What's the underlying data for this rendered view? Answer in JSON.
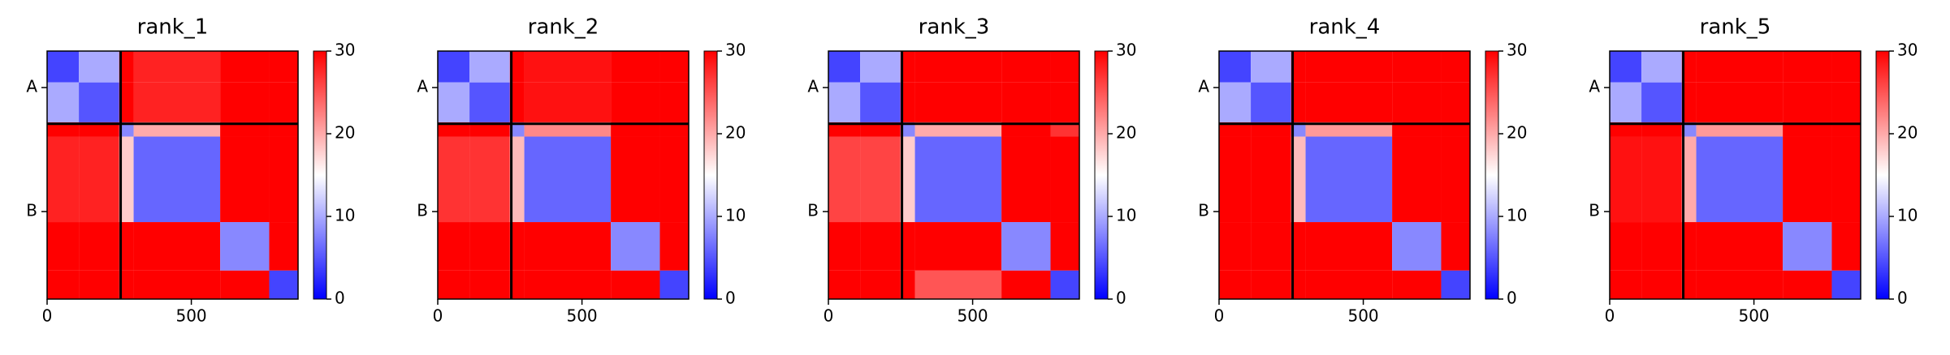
{
  "chart_data": [
    {
      "type": "heatmap",
      "title": "rank_1",
      "bins": [
        0,
        110,
        250,
        300,
        600,
        770,
        870
      ],
      "values": [
        [
          4,
          10,
          30,
          28,
          30,
          30
        ],
        [
          10,
          5,
          30,
          28,
          30,
          30
        ],
        [
          30,
          30,
          8,
          20,
          30,
          30
        ],
        [
          28,
          28,
          18,
          6,
          30,
          30
        ],
        [
          30,
          30,
          30,
          30,
          8,
          30
        ],
        [
          30,
          30,
          30,
          30,
          30,
          4
        ]
      ],
      "xlim": [
        0,
        870
      ],
      "ylim": [
        870,
        0
      ],
      "xticks": [
        0,
        500
      ],
      "yticks": [
        {
          "value": 128,
          "label": "A"
        },
        {
          "value": 563,
          "label": "B"
        }
      ],
      "chain_breaks": [
        255
      ],
      "zlim": [
        0,
        30
      ],
      "zticks": [
        0,
        10,
        20,
        30
      ]
    },
    {
      "type": "heatmap",
      "title": "rank_2",
      "bins": [
        0,
        110,
        250,
        300,
        600,
        770,
        870
      ],
      "values": [
        [
          4,
          10,
          30,
          29,
          30,
          30
        ],
        [
          10,
          5,
          30,
          29,
          30,
          30
        ],
        [
          30,
          30,
          8,
          22,
          30,
          30
        ],
        [
          27,
          27,
          19,
          6,
          30,
          30
        ],
        [
          30,
          30,
          30,
          30,
          8,
          30
        ],
        [
          30,
          30,
          30,
          30,
          30,
          4
        ]
      ],
      "xlim": [
        0,
        870
      ],
      "ylim": [
        870,
        0
      ],
      "xticks": [
        0,
        500
      ],
      "yticks": [
        {
          "value": 128,
          "label": "A"
        },
        {
          "value": 563,
          "label": "B"
        }
      ],
      "chain_breaks": [
        255
      ],
      "zlim": [
        0,
        30
      ],
      "zticks": [
        0,
        10,
        20,
        30
      ]
    },
    {
      "type": "heatmap",
      "title": "rank_3",
      "bins": [
        0,
        110,
        250,
        300,
        600,
        770,
        870
      ],
      "values": [
        [
          4,
          10,
          30,
          30,
          30,
          30
        ],
        [
          10,
          5,
          30,
          30,
          30,
          30
        ],
        [
          30,
          30,
          8,
          20,
          30,
          27
        ],
        [
          26,
          26,
          18,
          6,
          30,
          30
        ],
        [
          30,
          30,
          30,
          30,
          8,
          30
        ],
        [
          30,
          30,
          30,
          25,
          30,
          4
        ]
      ],
      "xlim": [
        0,
        870
      ],
      "ylim": [
        870,
        0
      ],
      "xticks": [
        0,
        500
      ],
      "yticks": [
        {
          "value": 128,
          "label": "A"
        },
        {
          "value": 563,
          "label": "B"
        }
      ],
      "chain_breaks": [
        255
      ],
      "zlim": [
        0,
        30
      ],
      "zticks": [
        0,
        10,
        20,
        30
      ]
    },
    {
      "type": "heatmap",
      "title": "rank_4",
      "bins": [
        0,
        110,
        250,
        300,
        600,
        770,
        870
      ],
      "values": [
        [
          4,
          10,
          30,
          30,
          30,
          30
        ],
        [
          10,
          5,
          30,
          30,
          30,
          30
        ],
        [
          30,
          30,
          8,
          21,
          30,
          30
        ],
        [
          30,
          30,
          19,
          6,
          30,
          30
        ],
        [
          30,
          30,
          30,
          30,
          8,
          30
        ],
        [
          30,
          30,
          30,
          30,
          30,
          4
        ]
      ],
      "xlim": [
        0,
        870
      ],
      "ylim": [
        870,
        0
      ],
      "xticks": [
        0,
        500
      ],
      "yticks": [
        {
          "value": 128,
          "label": "A"
        },
        {
          "value": 563,
          "label": "B"
        }
      ],
      "chain_breaks": [
        255
      ],
      "zlim": [
        0,
        30
      ],
      "zticks": [
        0,
        10,
        20,
        30
      ]
    },
    {
      "type": "heatmap",
      "title": "rank_5",
      "bins": [
        0,
        110,
        250,
        300,
        600,
        770,
        870
      ],
      "values": [
        [
          4,
          10,
          30,
          30,
          30,
          30
        ],
        [
          10,
          5,
          30,
          30,
          30,
          30
        ],
        [
          30,
          30,
          8,
          21,
          30,
          30
        ],
        [
          29,
          29,
          20,
          6,
          30,
          30
        ],
        [
          30,
          30,
          30,
          30,
          8,
          30
        ],
        [
          30,
          30,
          30,
          30,
          30,
          4
        ]
      ],
      "xlim": [
        0,
        870
      ],
      "ylim": [
        870,
        0
      ],
      "xticks": [
        0,
        500
      ],
      "yticks": [
        {
          "value": 128,
          "label": "A"
        },
        {
          "value": 563,
          "label": "B"
        }
      ],
      "chain_breaks": [
        255
      ],
      "zlim": [
        0,
        30
      ],
      "zticks": [
        0,
        10,
        20,
        30
      ]
    }
  ]
}
